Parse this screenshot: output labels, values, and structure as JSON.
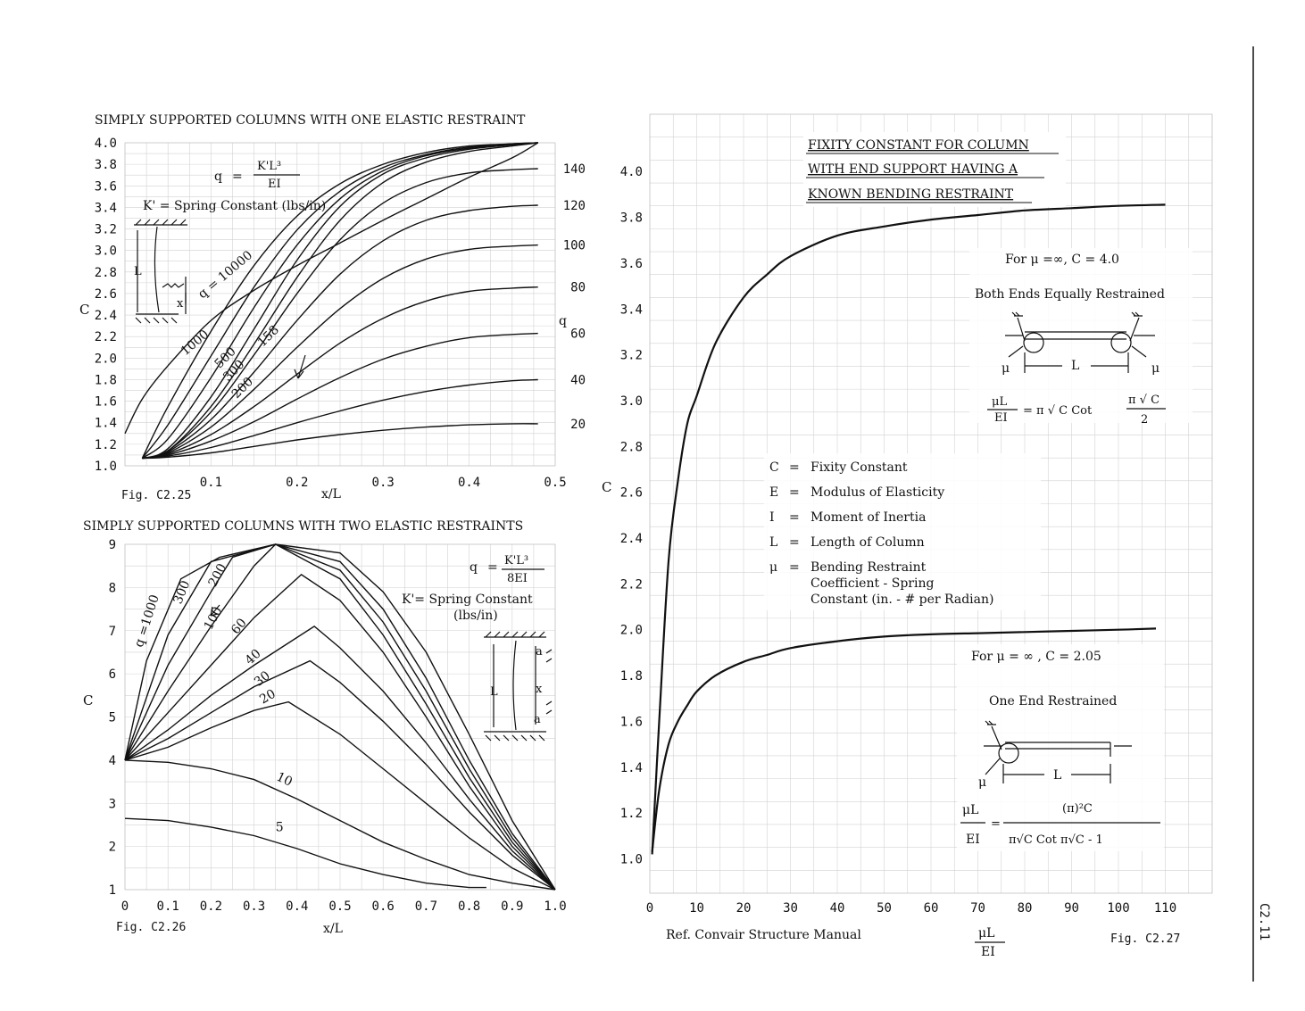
{
  "page_number": "C2.11",
  "chart_data": [
    {
      "id": "c225",
      "type": "line",
      "title": "SIMPLY SUPPORTED COLUMNS WITH ONE ELASTIC RESTRAINT",
      "fig_label": "Fig. C2.25",
      "xlabel": "x/L",
      "ylabel": "C",
      "right_axis_label": "q",
      "xlim": [
        0,
        0.5
      ],
      "ylim": [
        1.0,
        4.0
      ],
      "x_ticks": [
        "0.1",
        "0.2",
        "0.3",
        "0.4",
        "0.5"
      ],
      "y_ticks": [
        "1.0",
        "1.2",
        "1.4",
        "1.6",
        "1.8",
        "2.0",
        "2.2",
        "2.4",
        "2.6",
        "2.8",
        "3.0",
        "3.2",
        "3.4",
        "3.6",
        "3.8",
        "4.0"
      ],
      "formula": {
        "lhs": "q",
        "num": "K'L³",
        "den": "EI"
      },
      "note": "K'  =  Spring Constant  (lbs/in)",
      "inset_labels": [
        "L",
        "x"
      ],
      "grid": true,
      "series": [
        {
          "name": "20",
          "x": [
            0.02,
            0.05,
            0.1,
            0.15,
            0.2,
            0.25,
            0.3,
            0.35,
            0.4,
            0.45,
            0.48
          ],
          "y": [
            1.07,
            1.08,
            1.12,
            1.18,
            1.24,
            1.29,
            1.33,
            1.36,
            1.38,
            1.39,
            1.39
          ]
        },
        {
          "name": "40",
          "x": [
            0.02,
            0.05,
            0.1,
            0.15,
            0.2,
            0.25,
            0.3,
            0.35,
            0.4,
            0.45,
            0.48
          ],
          "y": [
            1.07,
            1.09,
            1.17,
            1.28,
            1.4,
            1.51,
            1.61,
            1.69,
            1.75,
            1.79,
            1.8
          ]
        },
        {
          "name": "60",
          "x": [
            0.02,
            0.05,
            0.1,
            0.15,
            0.2,
            0.25,
            0.3,
            0.35,
            0.4,
            0.45,
            0.48
          ],
          "y": [
            1.07,
            1.1,
            1.23,
            1.41,
            1.62,
            1.82,
            1.99,
            2.11,
            2.19,
            2.22,
            2.23
          ]
        },
        {
          "name": "80",
          "x": [
            0.02,
            0.05,
            0.1,
            0.15,
            0.2,
            0.25,
            0.3,
            0.35,
            0.4,
            0.45,
            0.48
          ],
          "y": [
            1.07,
            1.11,
            1.29,
            1.55,
            1.85,
            2.14,
            2.37,
            2.53,
            2.62,
            2.65,
            2.66
          ]
        },
        {
          "name": "100",
          "x": [
            0.02,
            0.05,
            0.1,
            0.15,
            0.2,
            0.25,
            0.3,
            0.35,
            0.4,
            0.45,
            0.48
          ],
          "y": [
            1.07,
            1.12,
            1.36,
            1.71,
            2.1,
            2.46,
            2.74,
            2.92,
            3.01,
            3.04,
            3.05
          ]
        },
        {
          "name": "120",
          "x": [
            0.02,
            0.05,
            0.1,
            0.15,
            0.2,
            0.25,
            0.3,
            0.35,
            0.4,
            0.45,
            0.48
          ],
          "y": [
            1.07,
            1.13,
            1.43,
            1.87,
            2.35,
            2.78,
            3.09,
            3.28,
            3.37,
            3.41,
            3.42
          ]
        },
        {
          "name": "140",
          "x": [
            0.02,
            0.05,
            0.1,
            0.15,
            0.2,
            0.25,
            0.3,
            0.35,
            0.4,
            0.45,
            0.48
          ],
          "y": [
            1.07,
            1.14,
            1.5,
            2.03,
            2.6,
            3.1,
            3.44,
            3.63,
            3.72,
            3.75,
            3.76
          ]
        },
        {
          "name": "158",
          "x": [
            0.02,
            0.05,
            0.1,
            0.15,
            0.2,
            0.25,
            0.3,
            0.35,
            0.4,
            0.45,
            0.48
          ],
          "y": [
            1.07,
            1.14,
            1.55,
            2.13,
            2.75,
            3.28,
            3.63,
            3.82,
            3.92,
            3.97,
            4.0
          ]
        },
        {
          "name": "200",
          "x": [
            0.02,
            0.05,
            0.1,
            0.15,
            0.2,
            0.25,
            0.3,
            0.35,
            0.4,
            0.45,
            0.48
          ],
          "y": [
            1.07,
            1.16,
            1.64,
            2.27,
            2.91,
            3.41,
            3.71,
            3.86,
            3.94,
            3.98,
            4.0
          ]
        },
        {
          "name": "300",
          "x": [
            0.02,
            0.05,
            0.1,
            0.15,
            0.2,
            0.25,
            0.3,
            0.35,
            0.4,
            0.45,
            0.48
          ],
          "y": [
            1.07,
            1.25,
            1.82,
            2.47,
            3.05,
            3.48,
            3.74,
            3.88,
            3.95,
            3.99,
            4.0
          ]
        },
        {
          "name": "500",
          "x": [
            0.02,
            0.05,
            0.1,
            0.15,
            0.2,
            0.25,
            0.3,
            0.35,
            0.4,
            0.45,
            0.48
          ],
          "y": [
            1.07,
            1.38,
            2.02,
            2.66,
            3.19,
            3.55,
            3.77,
            3.89,
            3.96,
            3.99,
            4.0
          ]
        },
        {
          "name": "1000",
          "x": [
            0.02,
            0.05,
            0.1,
            0.15,
            0.2,
            0.25,
            0.3,
            0.35,
            0.4,
            0.45,
            0.48
          ],
          "y": [
            1.07,
            1.55,
            2.25,
            2.86,
            3.32,
            3.62,
            3.8,
            3.91,
            3.97,
            3.99,
            4.0
          ]
        },
        {
          "name": "10000",
          "x": [
            0.0,
            0.02,
            0.05,
            0.1,
            0.15,
            0.2,
            0.25,
            0.3,
            0.35,
            0.4,
            0.45,
            0.48
          ],
          "y": [
            1.3,
            1.62,
            1.93,
            2.35,
            2.63,
            2.86,
            3.07,
            3.28,
            3.48,
            3.68,
            3.86,
            4.0
          ]
        }
      ]
    },
    {
      "id": "c226",
      "type": "line",
      "title": "SIMPLY SUPPORTED COLUMNS WITH TWO ELASTIC RESTRAINTS",
      "fig_label": "Fig. C2.26",
      "xlabel": "x/L",
      "ylabel": "C",
      "xlim": [
        0,
        1.0
      ],
      "ylim": [
        1,
        9
      ],
      "x_ticks": [
        "0",
        "0.1",
        "0.2",
        "0.3",
        "0.4",
        "0.5",
        "0.6",
        "0.7",
        "0.8",
        "0.9",
        "1.0"
      ],
      "y_ticks": [
        "1",
        "2",
        "3",
        "4",
        "5",
        "6",
        "7",
        "8",
        "9"
      ],
      "formula": {
        "lhs": "q",
        "num": "K'L³",
        "den": "8EI"
      },
      "note": "K'= Spring Constant",
      "note2": "(lbs/in)",
      "inset_labels": [
        "L",
        "x",
        "a",
        "a"
      ],
      "grid": true,
      "series": [
        {
          "name": "5",
          "x": [
            0,
            0.1,
            0.2,
            0.3,
            0.4,
            0.5,
            0.6,
            0.7,
            0.8,
            0.84
          ],
          "y": [
            2.65,
            2.6,
            2.45,
            2.25,
            1.95,
            1.6,
            1.35,
            1.15,
            1.05,
            1.05
          ]
        },
        {
          "name": "10",
          "x": [
            0,
            0.1,
            0.2,
            0.3,
            0.4,
            0.5,
            0.6,
            0.7,
            0.8,
            0.9,
            1.0
          ],
          "y": [
            4.0,
            3.95,
            3.8,
            3.55,
            3.1,
            2.6,
            2.1,
            1.7,
            1.35,
            1.15,
            1.0
          ]
        },
        {
          "name": "20",
          "x": [
            0,
            0.1,
            0.2,
            0.3,
            0.38,
            0.5,
            0.6,
            0.7,
            0.8,
            0.9,
            1.0
          ],
          "y": [
            4.0,
            4.3,
            4.75,
            5.15,
            5.35,
            4.6,
            3.8,
            3.0,
            2.2,
            1.5,
            1.0
          ]
        },
        {
          "name": "30",
          "x": [
            0,
            0.1,
            0.2,
            0.3,
            0.43,
            0.5,
            0.6,
            0.7,
            0.8,
            0.9,
            1.0
          ],
          "y": [
            4.0,
            4.5,
            5.1,
            5.7,
            6.3,
            5.8,
            4.9,
            3.9,
            2.8,
            1.8,
            1.0
          ]
        },
        {
          "name": "40",
          "x": [
            0,
            0.1,
            0.2,
            0.3,
            0.44,
            0.5,
            0.6,
            0.7,
            0.8,
            0.9,
            1.0
          ],
          "y": [
            4.0,
            4.7,
            5.5,
            6.2,
            7.1,
            6.6,
            5.6,
            4.4,
            3.1,
            1.9,
            1.0
          ]
        },
        {
          "name": "60",
          "x": [
            0,
            0.1,
            0.2,
            0.3,
            0.41,
            0.5,
            0.6,
            0.7,
            0.8,
            0.9,
            1.0
          ],
          "y": [
            4.0,
            5.1,
            6.2,
            7.3,
            8.3,
            7.7,
            6.5,
            5.0,
            3.4,
            2.0,
            1.0
          ]
        },
        {
          "name": "100",
          "x": [
            0,
            0.1,
            0.2,
            0.3,
            0.35,
            0.5,
            0.6,
            0.7,
            0.8,
            0.9,
            1.0
          ],
          "y": [
            4.0,
            5.6,
            7.1,
            8.5,
            9.0,
            8.2,
            6.9,
            5.3,
            3.6,
            2.1,
            1.0
          ]
        },
        {
          "name": "200",
          "x": [
            0,
            0.1,
            0.2,
            0.25,
            0.35,
            0.5,
            0.6,
            0.7,
            0.8,
            0.9,
            1.0
          ],
          "y": [
            4.0,
            6.2,
            7.9,
            8.7,
            9.0,
            8.4,
            7.2,
            5.6,
            3.8,
            2.2,
            1.0
          ]
        },
        {
          "name": "300",
          "x": [
            0,
            0.1,
            0.2,
            0.35,
            0.5,
            0.6,
            0.7,
            0.8,
            0.9,
            1.0
          ],
          "y": [
            4.0,
            6.9,
            8.6,
            9.0,
            8.6,
            7.5,
            5.9,
            4.0,
            2.3,
            1.0
          ]
        },
        {
          "name": "1000",
          "x": [
            0,
            0.05,
            0.13,
            0.22,
            0.35,
            0.5,
            0.6,
            0.7,
            0.8,
            0.9,
            1.0
          ],
          "y": [
            4.0,
            6.3,
            8.2,
            8.7,
            9.0,
            8.8,
            7.9,
            6.5,
            4.6,
            2.6,
            1.0
          ]
        }
      ]
    },
    {
      "id": "c227",
      "type": "line",
      "title_lines": [
        "FIXITY CONSTANT FOR COLUMN",
        "WITH END SUPPORT HAVING A",
        "KNOWN BENDING RESTRAINT"
      ],
      "fig_label": "Fig. C2.27",
      "ref": "Ref. Convair Structure Manual",
      "xlabel_num": "μL",
      "xlabel_den": "EI",
      "ylabel": "C",
      "xlim": [
        0,
        120
      ],
      "ylim": [
        0.85,
        4.25
      ],
      "x_ticks": [
        "0",
        "10",
        "20",
        "30",
        "40",
        "50",
        "60",
        "70",
        "80",
        "90",
        "100",
        "110"
      ],
      "y_ticks": [
        "1.0",
        "1.2",
        "1.4",
        "1.6",
        "1.8",
        "2.0",
        "2.2",
        "2.4",
        "2.6",
        "2.8",
        "3.0",
        "3.2",
        "3.4",
        "3.6",
        "3.8",
        "4.0"
      ],
      "grid": true,
      "legend": [
        {
          "sym": "C",
          "desc": "Fixity Constant"
        },
        {
          "sym": "E",
          "desc": "Modulus of Elasticity"
        },
        {
          "sym": "I",
          "desc": "Moment of Inertia"
        },
        {
          "sym": "L",
          "desc": "Length of Column"
        },
        {
          "sym": "μ",
          "desc": "Bending Restraint"
        }
      ],
      "legend_extra": [
        "Coefficient - Spring",
        "Constant     (in. - # per Radian)"
      ],
      "note_both": {
        "limit": "For  μ  =∞,  C = 4.0",
        "title": "Both Ends Equally Restrained",
        "eq_lhs_num": "μL",
        "eq_lhs_den": "EI",
        "eq_mid": "= π √ C  Cot",
        "eq_rhs_num": "π √ C",
        "eq_rhs_den": "2",
        "mu_left": "μ",
        "mu_right": "μ",
        "len": "L"
      },
      "note_one": {
        "limit": "For  μ  = ∞ ,   C = 2.05",
        "title": "One End Restrained",
        "eq_lhs_num": "μL",
        "eq_lhs_den": "EI",
        "eq_rhs_num": "(π)²C",
        "eq_rhs_den": "π√C Cot   π√C - 1",
        "mu": "μ",
        "len": "L"
      },
      "series": [
        {
          "name": "Both Ends Equally Restrained",
          "x": [
            0.5,
            2,
            4,
            6,
            8,
            10,
            14,
            20,
            25,
            30,
            40,
            50,
            60,
            70,
            80,
            90,
            100,
            110
          ],
          "y": [
            1.02,
            1.6,
            2.3,
            2.65,
            2.9,
            3.02,
            3.25,
            3.45,
            3.55,
            3.63,
            3.72,
            3.76,
            3.79,
            3.81,
            3.83,
            3.84,
            3.85,
            3.855
          ]
        },
        {
          "name": "One End Restrained",
          "x": [
            0.5,
            2,
            4,
            6,
            8,
            10,
            14,
            20,
            25,
            30,
            40,
            50,
            60,
            70,
            80,
            90,
            100,
            108
          ],
          "y": [
            1.03,
            1.3,
            1.5,
            1.6,
            1.67,
            1.73,
            1.8,
            1.86,
            1.89,
            1.92,
            1.95,
            1.97,
            1.98,
            1.985,
            1.99,
            1.995,
            2.0,
            2.005
          ]
        }
      ]
    }
  ]
}
